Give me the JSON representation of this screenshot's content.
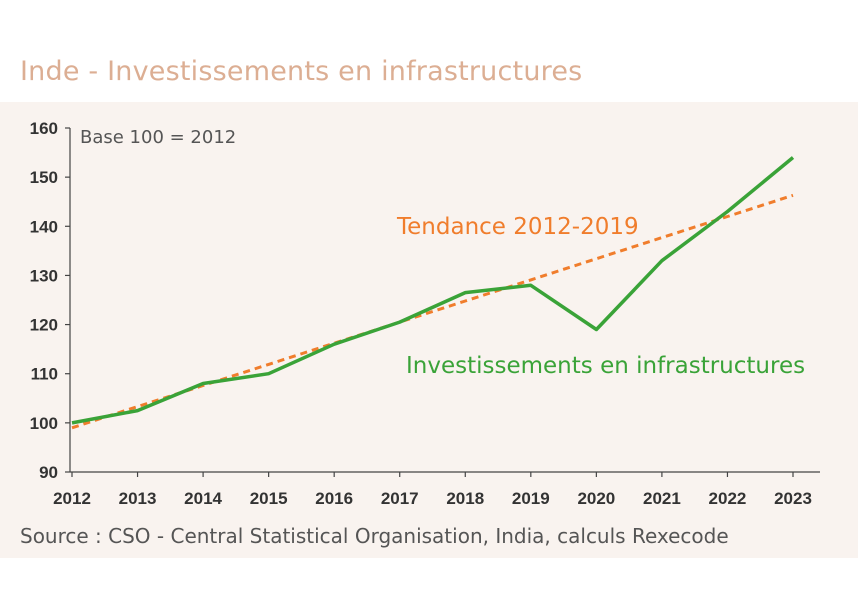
{
  "title": "Inde - Investissements en infrastructures",
  "source": "Source : CSO - Central Statistical Organisation, India, calculs Rexecode",
  "chart_data": {
    "type": "line",
    "title": "Inde - Investissements en infrastructures",
    "note": "Base 100 = 2012",
    "x": [
      "2012",
      "2013",
      "2014",
      "2015",
      "2016",
      "2017",
      "2018",
      "2019",
      "2020",
      "2021",
      "2022",
      "2023"
    ],
    "ylim": [
      90,
      160
    ],
    "yticks": [
      90,
      100,
      110,
      120,
      130,
      140,
      150,
      160
    ],
    "grid": false,
    "series": [
      {
        "name": "Investissements en infrastructures",
        "label": "Investissements en infrastructures",
        "color": "#3aa338",
        "style": "solid",
        "values": [
          100,
          102.5,
          108,
          110,
          116,
          120.5,
          126.5,
          128,
          119,
          133,
          143,
          154
        ]
      },
      {
        "name": "Tendance 2012-2019",
        "label": "Tendance 2012-2019",
        "color": "#f07d2c",
        "style": "dashed",
        "values": [
          99,
          103.3,
          107.6,
          111.9,
          116.2,
          120.5,
          124.8,
          129.1,
          133.4,
          137.7,
          142.0,
          146.3
        ]
      }
    ]
  }
}
